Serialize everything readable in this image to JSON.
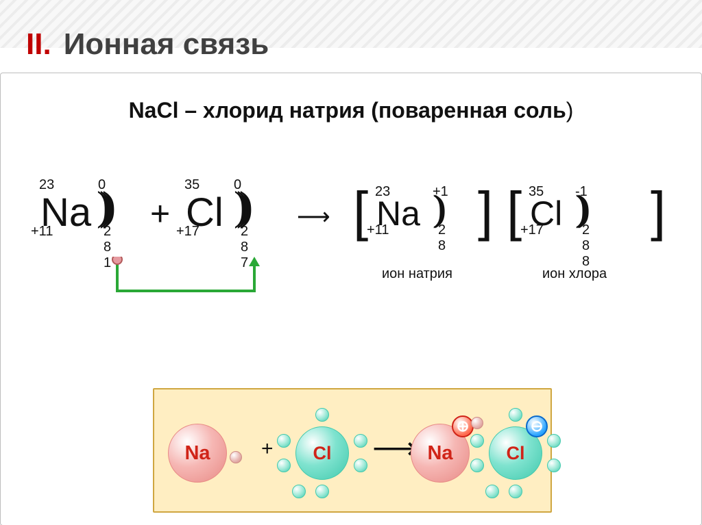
{
  "page": {
    "roman": "II.",
    "title": "Ионная связь",
    "subtitle_prefix": "NaCl – хлорид натрия (поваренная соль",
    "subtitle_rparen": ")"
  },
  "row1": {
    "na_atom": {
      "sym": "Na",
      "mass": "23",
      "z": "+11",
      "charge": "0",
      "shells": "2 8 1",
      "arcs": ")))"
    },
    "cl_atom": {
      "sym": "Cl",
      "mass": "35",
      "z": "+17",
      "charge": "0",
      "shells": "2 8 7",
      "arcs": ")))"
    },
    "plus": "+",
    "arrow": "⟶",
    "na_ion": {
      "sym": "Na",
      "mass": "23",
      "z": "+11",
      "charge": "+1",
      "shells": "2 8",
      "arcs": "))",
      "label": "ион натрия"
    },
    "cl_ion": {
      "sym": "Cl",
      "mass": "35",
      "z": "+17",
      "charge": "-1",
      "shells": "2 8 8",
      "arcs": ")))",
      "label": "ион хлора"
    },
    "bracket_l": "[",
    "bracket_r": "]"
  },
  "transfer": {
    "path_color": "#2aa836",
    "electron_fill": "#e59aa0",
    "electron_stroke": "#b35a5a",
    "arrow_tip": "▲"
  },
  "model": {
    "plus": "+",
    "arrow": "⟶",
    "na": {
      "label": "Na",
      "fill": "#f6b7b4",
      "stroke": "#e88a85",
      "text": "#d02418",
      "r": 42
    },
    "cl": {
      "label": "Cl",
      "fill": "#7fe3cf",
      "stroke": "#41c9ad",
      "text": "#d02418",
      "r": 38
    },
    "electron": {
      "fill": "#99e8d5",
      "stroke": "#41c9ad",
      "r": 9
    },
    "na_electron": {
      "fill": "#e8b7b3",
      "stroke": "#cf8a84",
      "r": 8
    },
    "badge_plus": {
      "glyph": "⊕",
      "bg1": "#ff6a4d",
      "bg2": "#ffffff",
      "border": "#d02418",
      "r": 14
    },
    "badge_minus": {
      "glyph": "⊖",
      "bg1": "#2aa4ff",
      "bg2": "#ffffff",
      "border": "#0a6acb",
      "r": 14
    }
  },
  "colors": {
    "card_border": "#bdbdbd",
    "box_bg": "#ffeec2",
    "box_border": "#cfa640",
    "title": "#404040",
    "roman": "#c00000",
    "text": "#111111"
  }
}
